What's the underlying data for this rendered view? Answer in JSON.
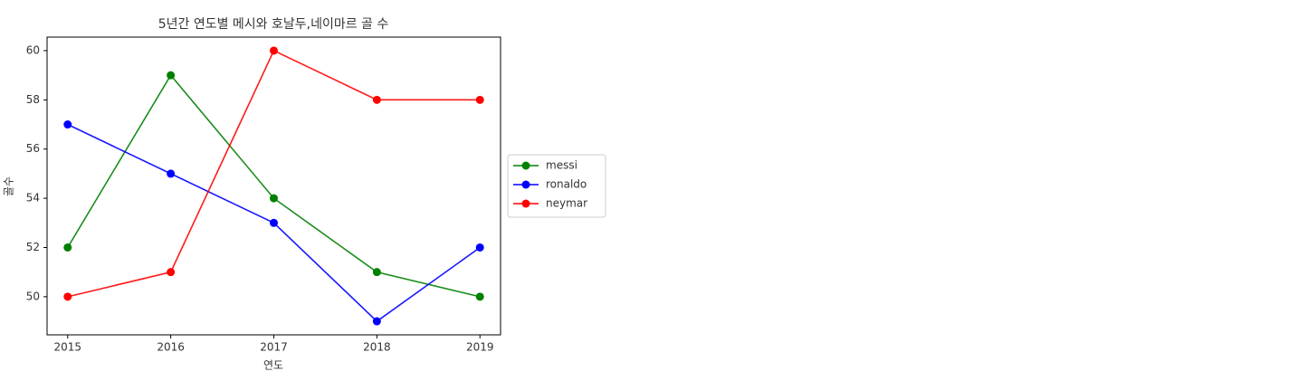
{
  "chart_data": {
    "type": "line",
    "title": "5년간 연도별 메시와 호날두,네이마르 골 수",
    "x_label": "연도",
    "y_label": "골수",
    "x": [
      2015,
      2016,
      2017,
      2018,
      2019
    ],
    "series": [
      {
        "name": "messi",
        "color": "green",
        "values": [
          52,
          59,
          54,
          51,
          50
        ]
      },
      {
        "name": "ronaldo",
        "color": "blue",
        "values": [
          57,
          55,
          53,
          49,
          52
        ]
      },
      {
        "name": "neymar",
        "color": "red",
        "values": [
          50,
          51,
          60,
          58,
          58
        ]
      }
    ],
    "xlim": [
      2014.8,
      2019.2
    ],
    "xticks": [
      2015,
      2016,
      2017,
      2018,
      2019
    ],
    "ylim": [
      48.45,
      60.55
    ],
    "yticks": [
      50,
      52,
      54,
      56,
      58,
      60
    ],
    "legend": "center left"
  }
}
